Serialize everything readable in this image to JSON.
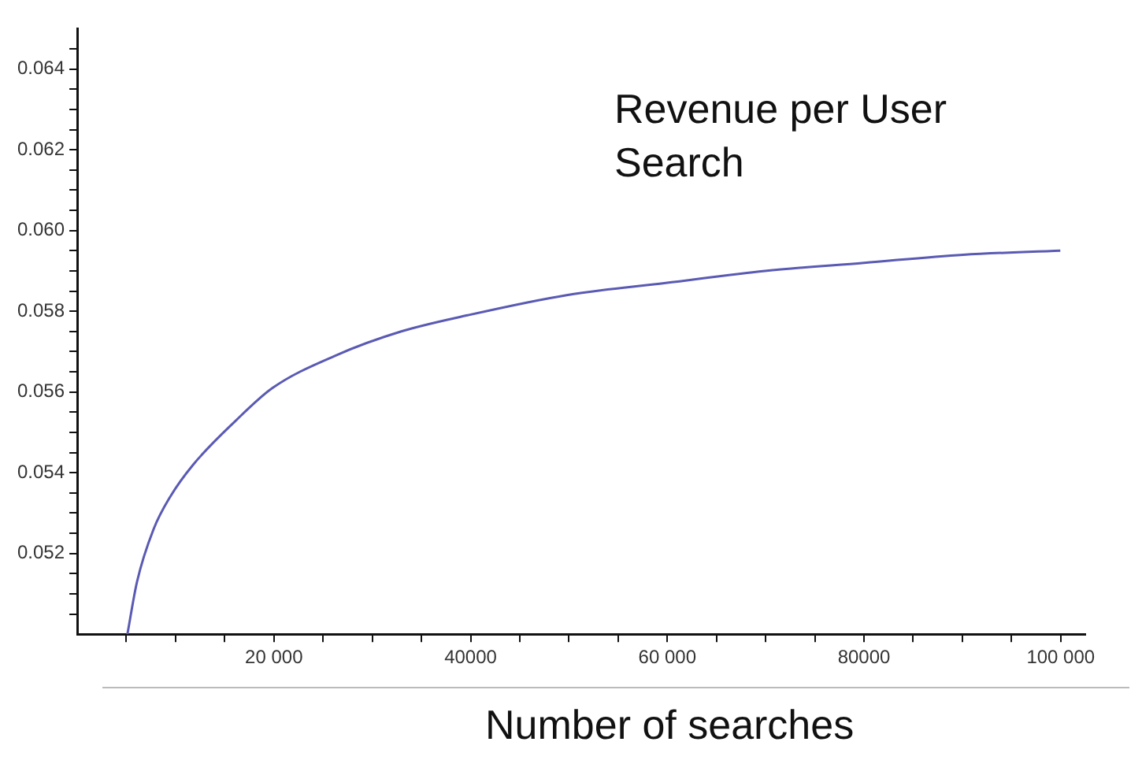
{
  "chart_data": {
    "type": "line",
    "title": "Revenue per User Search",
    "xlabel": "Number of searches",
    "x": [
      5100,
      6080,
      7760,
      9440,
      11790,
      16160,
      19860,
      26240,
      32950,
      39680,
      49760,
      59840,
      69920,
      80000,
      90080,
      99960
    ],
    "series": [
      {
        "color": "#5a5ab4",
        "values": [
          0.05,
          0.0513,
          0.0526,
          0.0534,
          0.0542,
          0.0553,
          0.0561,
          0.0569,
          0.0575,
          0.0579,
          0.0584,
          0.0587,
          0.059,
          0.0592,
          0.0594,
          0.0595
        ]
      }
    ],
    "xlim": [
      0,
      102500
    ],
    "ylim": [
      0.05,
      0.065
    ],
    "xticks": [
      {
        "value": 5000,
        "label": null
      },
      {
        "value": 10000,
        "label": null
      },
      {
        "value": 15000,
        "label": null
      },
      {
        "value": 20000,
        "label": "20 000"
      },
      {
        "value": 25000,
        "label": null
      },
      {
        "value": 30000,
        "label": null
      },
      {
        "value": 35000,
        "label": null
      },
      {
        "value": 40000,
        "label": "40000"
      },
      {
        "value": 45000,
        "label": null
      },
      {
        "value": 50000,
        "label": null
      },
      {
        "value": 55000,
        "label": null
      },
      {
        "value": 60000,
        "label": "60 000"
      },
      {
        "value": 65000,
        "label": null
      },
      {
        "value": 70000,
        "label": null
      },
      {
        "value": 75000,
        "label": null
      },
      {
        "value": 80000,
        "label": "80000"
      },
      {
        "value": 85000,
        "label": null
      },
      {
        "value": 90000,
        "label": null
      },
      {
        "value": 95000,
        "label": null
      },
      {
        "value": 100000,
        "label": "100 000"
      }
    ],
    "yticks": [
      {
        "value": 0.0505,
        "label": null
      },
      {
        "value": 0.051,
        "label": null
      },
      {
        "value": 0.0515,
        "label": null
      },
      {
        "value": 0.052,
        "label": "0.052"
      },
      {
        "value": 0.0525,
        "label": null
      },
      {
        "value": 0.053,
        "label": null
      },
      {
        "value": 0.0535,
        "label": null
      },
      {
        "value": 0.054,
        "label": "0.054"
      },
      {
        "value": 0.0545,
        "label": null
      },
      {
        "value": 0.055,
        "label": null
      },
      {
        "value": 0.0555,
        "label": null
      },
      {
        "value": 0.056,
        "label": "0.056"
      },
      {
        "value": 0.0565,
        "label": null
      },
      {
        "value": 0.057,
        "label": null
      },
      {
        "value": 0.0575,
        "label": null
      },
      {
        "value": 0.058,
        "label": "0.058"
      },
      {
        "value": 0.0585,
        "label": null
      },
      {
        "value": 0.059,
        "label": null
      },
      {
        "value": 0.0595,
        "label": null
      },
      {
        "value": 0.06,
        "label": "0.060"
      },
      {
        "value": 0.0605,
        "label": null
      },
      {
        "value": 0.061,
        "label": null
      },
      {
        "value": 0.0615,
        "label": null
      },
      {
        "value": 0.062,
        "label": "0.062"
      },
      {
        "value": 0.0625,
        "label": null
      },
      {
        "value": 0.063,
        "label": null
      },
      {
        "value": 0.0635,
        "label": null
      },
      {
        "value": 0.064,
        "label": "0.064"
      },
      {
        "value": 0.0645,
        "label": null
      }
    ],
    "grid": false,
    "legend": false,
    "marker": "none",
    "line_style": "solid"
  }
}
